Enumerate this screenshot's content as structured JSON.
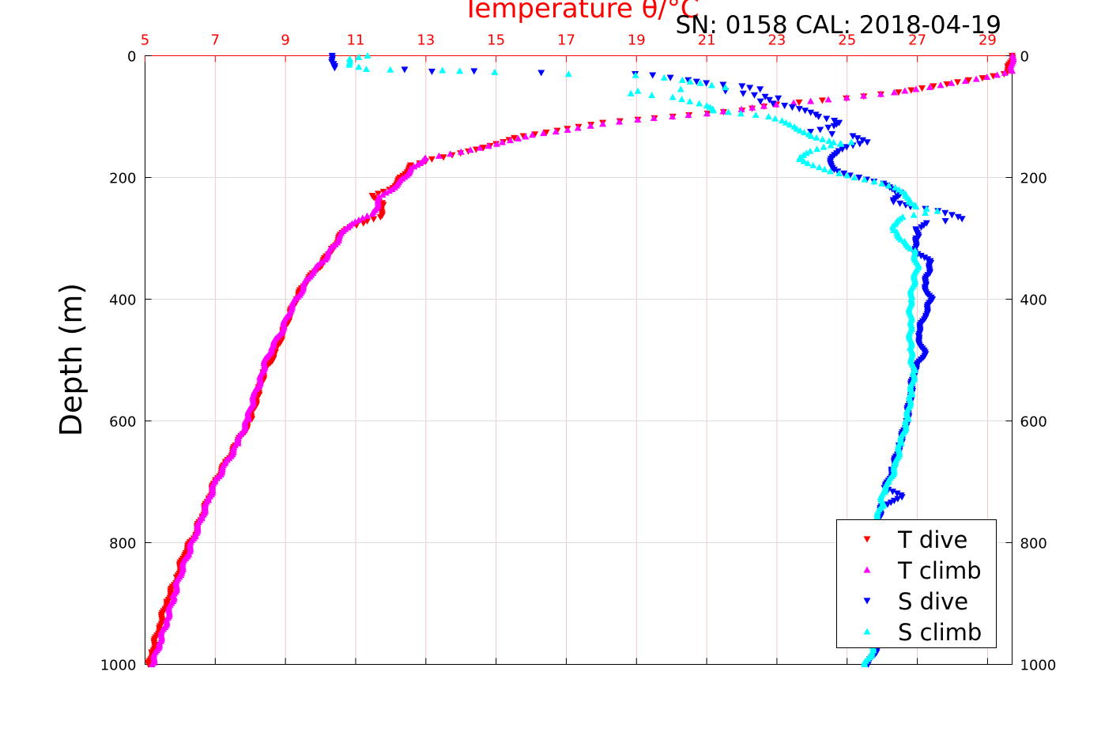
{
  "chart_data": {
    "type": "scatter",
    "title": "Temperature θ/°C",
    "annotation": "SN: 0158  CAL: 2018-04-19",
    "ylabel": "Depth (m)",
    "xlim": [
      5,
      29.7
    ],
    "ylim": [
      1000,
      0
    ],
    "y_reversed": true,
    "x_ticks": [
      "5",
      "7",
      "9",
      "11",
      "13",
      "15",
      "17",
      "19",
      "21",
      "23",
      "25",
      "27",
      "29"
    ],
    "y_ticks_left": [
      "0",
      "200",
      "400",
      "600",
      "800",
      "1000"
    ],
    "y_ticks_right": [
      "0",
      "200",
      "400",
      "600",
      "800",
      "1000"
    ],
    "grid": true,
    "legend_position": "bottom-right",
    "colors": {
      "title": "#ff0000",
      "axis_top": "#ff0000",
      "grid": "#f0c8c8",
      "t_dive": "#ff0000",
      "t_climb": "#ff00ff",
      "s_dive": "#0000ff",
      "s_climb": "#00ffff"
    },
    "series": [
      {
        "name": "T dive",
        "marker": "triangle-down",
        "color": "#ff0000",
        "points": [
          [
            29.7,
            0
          ],
          [
            29.6,
            20
          ],
          [
            29.5,
            30
          ],
          [
            28.5,
            40
          ],
          [
            27.5,
            50
          ],
          [
            26.5,
            60
          ],
          [
            25.0,
            70
          ],
          [
            23.0,
            80
          ],
          [
            22.0,
            90
          ],
          [
            21.0,
            95
          ],
          [
            20.0,
            100
          ],
          [
            19.0,
            105
          ],
          [
            18.0,
            110
          ],
          [
            17.0,
            120
          ],
          [
            15.5,
            135
          ],
          [
            15.0,
            145
          ],
          [
            14.0,
            160
          ],
          [
            13.2,
            170
          ],
          [
            12.6,
            180
          ],
          [
            12.3,
            200
          ],
          [
            12.0,
            220
          ],
          [
            11.5,
            230
          ],
          [
            11.8,
            245
          ],
          [
            11.7,
            265
          ],
          [
            11.2,
            275
          ],
          [
            10.7,
            285
          ],
          [
            10.3,
            320
          ],
          [
            10.0,
            345
          ],
          [
            9.6,
            370
          ],
          [
            9.3,
            400
          ],
          [
            9.1,
            430
          ],
          [
            8.9,
            460
          ],
          [
            8.7,
            490
          ],
          [
            8.4,
            520
          ],
          [
            8.2,
            560
          ],
          [
            8.0,
            600
          ],
          [
            7.6,
            640
          ],
          [
            7.3,
            670
          ],
          [
            7.0,
            700
          ],
          [
            6.8,
            730
          ],
          [
            6.6,
            760
          ],
          [
            6.4,
            790
          ],
          [
            6.1,
            820
          ],
          [
            5.9,
            860
          ],
          [
            5.6,
            900
          ],
          [
            5.4,
            940
          ],
          [
            5.2,
            980
          ],
          [
            5.1,
            1000
          ]
        ]
      },
      {
        "name": "T climb",
        "marker": "triangle-up",
        "color": "#ff00ff",
        "points": [
          [
            29.7,
            0
          ],
          [
            29.7,
            25
          ],
          [
            29.0,
            35
          ],
          [
            28.0,
            45
          ],
          [
            27.0,
            55
          ],
          [
            26.0,
            63
          ],
          [
            24.5,
            72
          ],
          [
            23.0,
            80
          ],
          [
            22.0,
            88
          ],
          [
            21.0,
            95
          ],
          [
            20.0,
            100
          ],
          [
            19.0,
            105
          ],
          [
            18.0,
            112
          ],
          [
            17.0,
            122
          ],
          [
            16.0,
            130
          ],
          [
            15.0,
            145
          ],
          [
            14.0,
            158
          ],
          [
            13.0,
            168
          ],
          [
            12.6,
            185
          ],
          [
            12.3,
            205
          ],
          [
            11.9,
            225
          ],
          [
            11.7,
            232
          ],
          [
            11.5,
            260
          ],
          [
            11.1,
            270
          ],
          [
            10.7,
            285
          ],
          [
            10.4,
            310
          ],
          [
            10.1,
            335
          ],
          [
            9.7,
            360
          ],
          [
            9.4,
            390
          ],
          [
            9.1,
            420
          ],
          [
            8.9,
            450
          ],
          [
            8.6,
            480
          ],
          [
            8.4,
            505
          ],
          [
            8.3,
            530
          ],
          [
            8.1,
            560
          ],
          [
            7.9,
            600
          ],
          [
            7.6,
            640
          ],
          [
            7.3,
            670
          ],
          [
            7.0,
            700
          ],
          [
            6.8,
            730
          ],
          [
            6.6,
            760
          ],
          [
            6.4,
            790
          ],
          [
            6.2,
            820
          ],
          [
            6.0,
            850
          ],
          [
            5.8,
            890
          ],
          [
            5.6,
            930
          ],
          [
            5.4,
            965
          ],
          [
            5.2,
            1000
          ]
        ]
      },
      {
        "name": "S dive",
        "marker": "triangle-down",
        "color": "#0000ff",
        "points": [
          [
            10.3,
            0
          ],
          [
            10.3,
            10
          ],
          [
            10.4,
            20
          ],
          [
            16.3,
            28
          ],
          [
            13.2,
            26
          ],
          [
            19.0,
            30
          ],
          [
            19.5,
            32
          ],
          [
            20.0,
            36
          ],
          [
            20.5,
            40
          ],
          [
            21.0,
            45
          ],
          [
            22.0,
            50
          ],
          [
            22.5,
            55
          ],
          [
            21.5,
            58
          ],
          [
            22.0,
            62
          ],
          [
            23.0,
            70
          ],
          [
            22.5,
            75
          ],
          [
            23.2,
            82
          ],
          [
            23.8,
            90
          ],
          [
            24.2,
            100
          ],
          [
            24.8,
            110
          ],
          [
            24.5,
            118
          ],
          [
            24.0,
            125
          ],
          [
            25.2,
            132
          ],
          [
            25.6,
            142
          ],
          [
            25.0,
            150
          ],
          [
            24.7,
            160
          ],
          [
            24.5,
            175
          ],
          [
            24.7,
            190
          ],
          [
            25.3,
            200
          ],
          [
            26.0,
            210
          ],
          [
            26.5,
            225
          ],
          [
            26.3,
            240
          ],
          [
            26.8,
            248
          ],
          [
            27.6,
            255
          ],
          [
            28.3,
            268
          ],
          [
            27.3,
            275
          ],
          [
            27.0,
            285
          ],
          [
            27.0,
            300
          ],
          [
            26.9,
            320
          ],
          [
            27.4,
            340
          ],
          [
            27.3,
            360
          ],
          [
            27.2,
            380
          ],
          [
            27.4,
            400
          ],
          [
            27.2,
            430
          ],
          [
            27.0,
            460
          ],
          [
            27.2,
            490
          ],
          [
            26.9,
            520
          ],
          [
            26.8,
            560
          ],
          [
            26.7,
            600
          ],
          [
            26.5,
            640
          ],
          [
            26.3,
            680
          ],
          [
            26.1,
            710
          ],
          [
            26.6,
            725
          ],
          [
            26.0,
            740
          ],
          [
            25.9,
            760
          ],
          [
            26.0,
            800
          ],
          [
            26.1,
            850
          ],
          [
            26.0,
            900
          ],
          [
            25.9,
            950
          ],
          [
            25.8,
            980
          ],
          [
            25.6,
            1000
          ]
        ]
      },
      {
        "name": "S climb",
        "marker": "triangle-up",
        "color": "#00ffff",
        "points": [
          [
            11.3,
            0
          ],
          [
            10.8,
            5
          ],
          [
            10.8,
            15
          ],
          [
            11.3,
            22
          ],
          [
            12.0,
            23
          ],
          [
            13.5,
            24
          ],
          [
            14.0,
            25
          ],
          [
            15.0,
            27
          ],
          [
            17.1,
            30
          ],
          [
            19.0,
            32
          ],
          [
            19.8,
            36
          ],
          [
            20.3,
            40
          ],
          [
            20.8,
            45
          ],
          [
            21.5,
            52
          ],
          [
            19.0,
            58
          ],
          [
            18.8,
            62
          ],
          [
            20.0,
            68
          ],
          [
            20.5,
            75
          ],
          [
            21.0,
            82
          ],
          [
            21.2,
            90
          ],
          [
            22.0,
            95
          ],
          [
            22.8,
            100
          ],
          [
            23.3,
            110
          ],
          [
            23.6,
            120
          ],
          [
            24.0,
            132
          ],
          [
            24.5,
            140
          ],
          [
            24.8,
            145
          ],
          [
            25.1,
            142
          ],
          [
            24.3,
            150
          ],
          [
            23.8,
            160
          ],
          [
            23.6,
            170
          ],
          [
            24.0,
            180
          ],
          [
            24.5,
            190
          ],
          [
            25.2,
            200
          ],
          [
            26.0,
            210
          ],
          [
            26.5,
            220
          ],
          [
            26.7,
            230
          ],
          [
            26.8,
            240
          ],
          [
            27.0,
            248
          ],
          [
            27.6,
            255
          ],
          [
            26.6,
            265
          ],
          [
            26.3,
            280
          ],
          [
            26.4,
            290
          ],
          [
            26.6,
            305
          ],
          [
            26.9,
            320
          ],
          [
            27.0,
            345
          ],
          [
            26.9,
            370
          ],
          [
            26.8,
            400
          ],
          [
            26.8,
            440
          ],
          [
            26.8,
            480
          ],
          [
            26.9,
            520
          ],
          [
            26.8,
            560
          ],
          [
            26.7,
            600
          ],
          [
            26.5,
            640
          ],
          [
            26.4,
            670
          ],
          [
            26.2,
            700
          ],
          [
            26.0,
            720
          ],
          [
            26.0,
            740
          ],
          [
            25.8,
            760
          ],
          [
            25.9,
            800
          ],
          [
            26.0,
            850
          ],
          [
            26.0,
            900
          ],
          [
            25.9,
            950
          ],
          [
            25.7,
            980
          ],
          [
            25.5,
            1000
          ]
        ]
      }
    ]
  }
}
